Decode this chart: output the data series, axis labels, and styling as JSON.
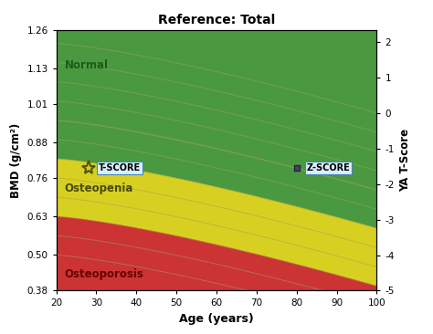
{
  "title": "Reference: Total",
  "xlabel": "Age (years)",
  "ylabel_left": "BMD (g/cm²)",
  "ylabel_right": "YA T-Score",
  "age_min": 20,
  "age_max": 100,
  "bmd_min": 0.38,
  "bmd_max": 1.26,
  "left_yticks": [
    0.38,
    0.5,
    0.63,
    0.76,
    0.88,
    1.01,
    1.13,
    1.26
  ],
  "right_yticks": [
    -5,
    -4,
    -3,
    -2,
    -1,
    0,
    1,
    2
  ],
  "age_ticks": [
    20,
    30,
    40,
    50,
    60,
    70,
    80,
    90,
    100
  ],
  "color_normal": "#4a9940",
  "color_osteopenia": "#d8d020",
  "color_osteoporosis": "#cc3333",
  "label_normal": "Normal",
  "label_osteopenia": "Osteopenia",
  "label_osteoporosis": "Osteoporosis",
  "ya_mean": 0.955,
  "ya_sd": 0.13,
  "mean_bmd_at_20": 0.955,
  "mean_bmd_at_100": 0.72,
  "tscore_marker_age": 28,
  "tscore_marker_bmd": 0.795,
  "zscore_marker_age": 80,
  "zscore_marker_bmd": 0.795,
  "curve_color": "#a0a060",
  "curve_alpha": 0.55
}
